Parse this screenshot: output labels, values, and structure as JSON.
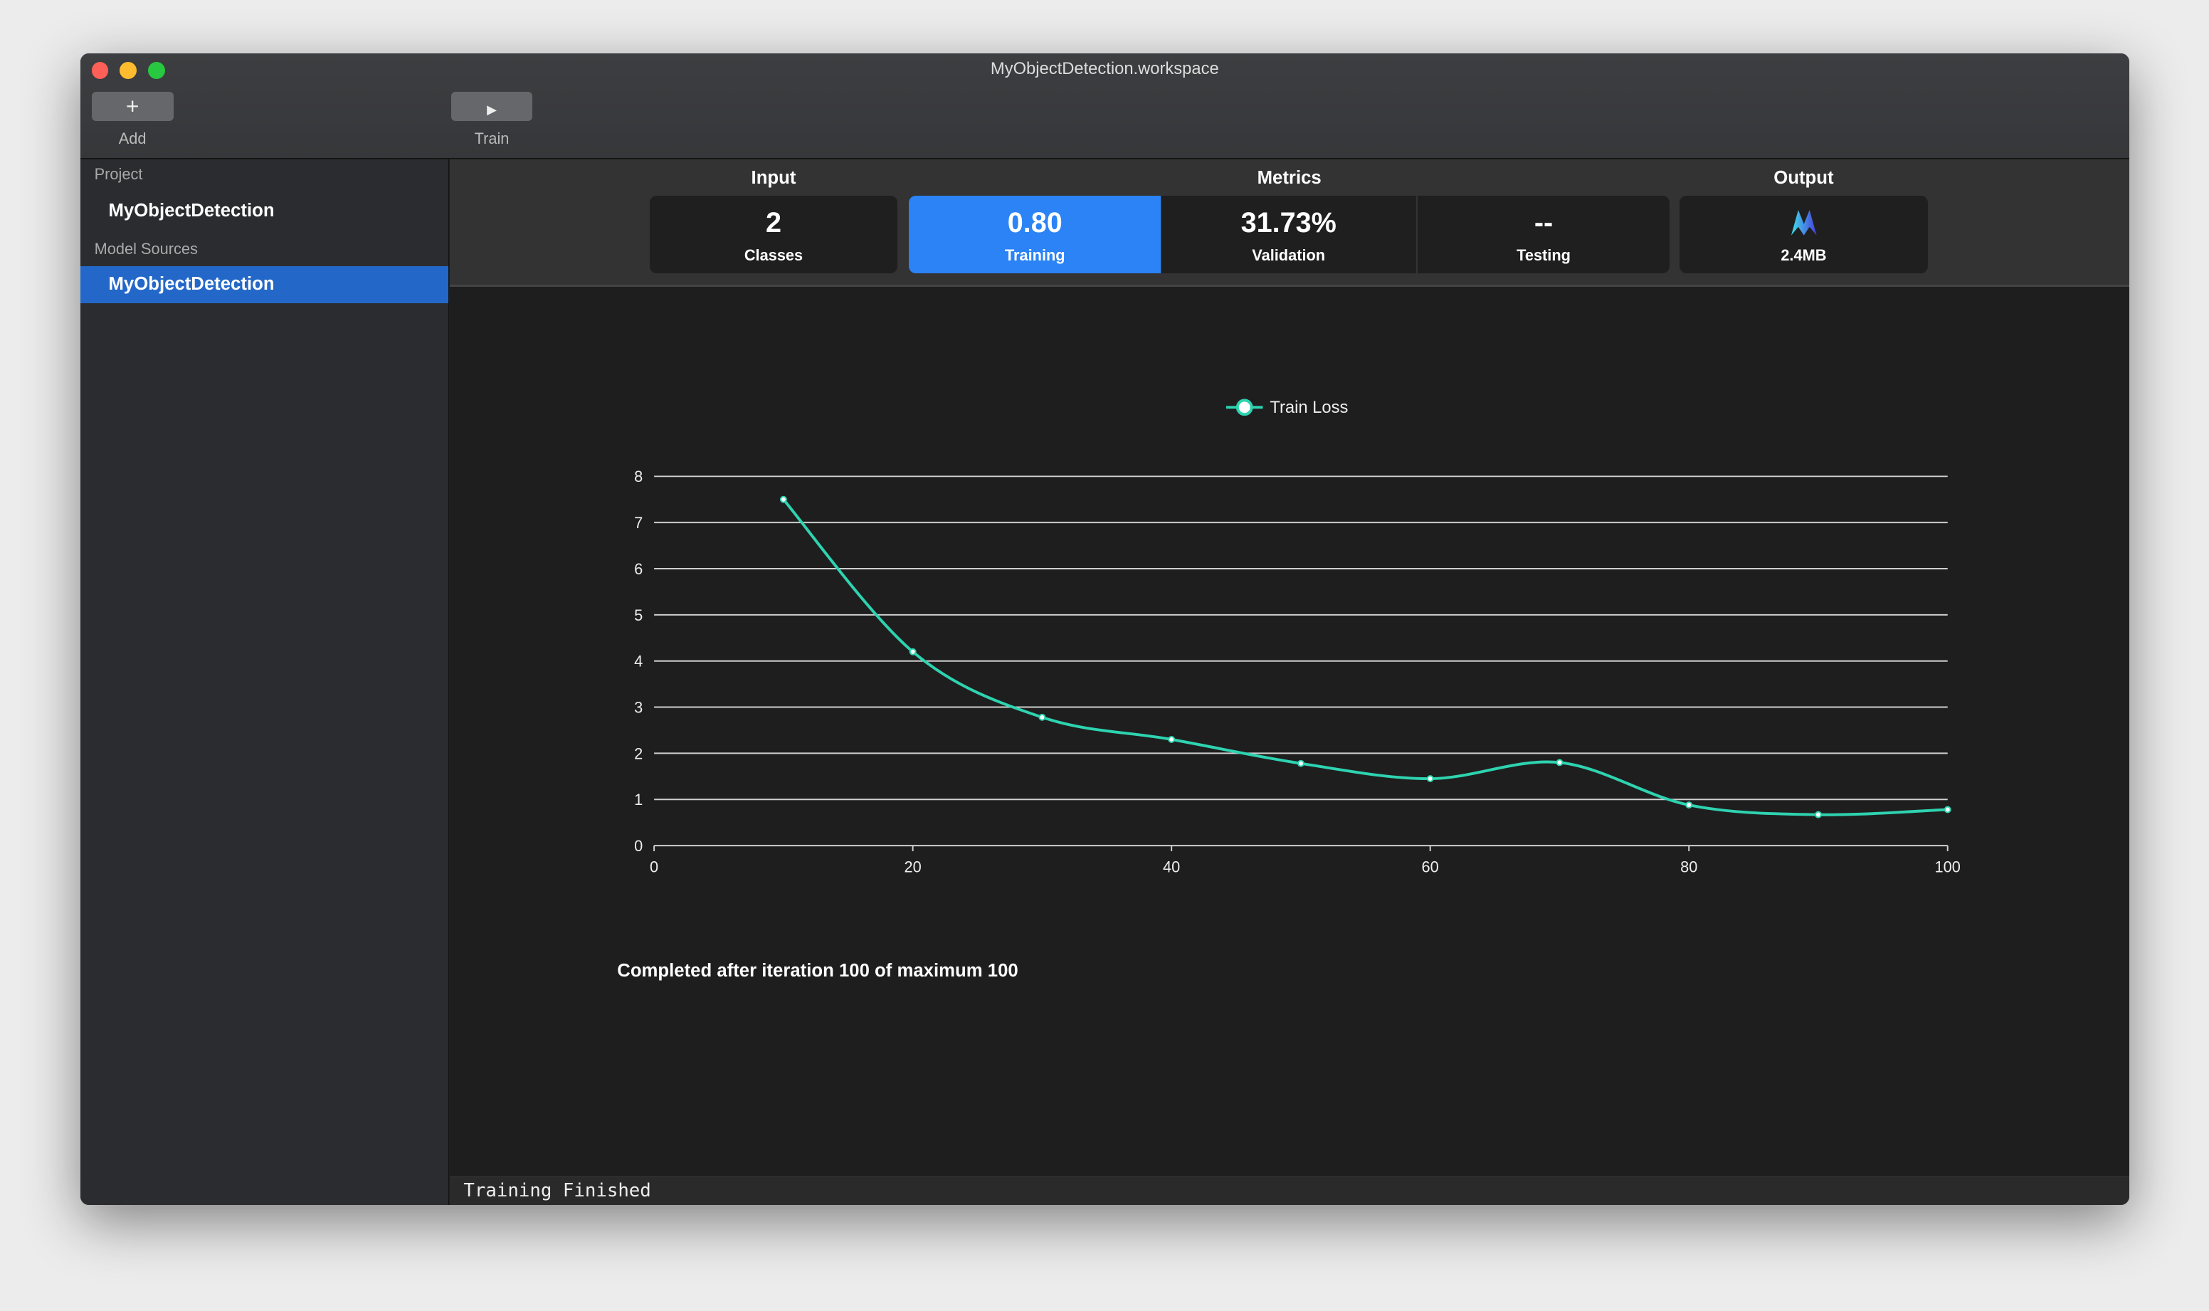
{
  "window": {
    "title": "MyObjectDetection.workspace"
  },
  "toolbar": {
    "add_label": "Add",
    "train_label": "Train"
  },
  "sidebar": {
    "project_header": "Project",
    "project_item": "MyObjectDetection",
    "sources_header": "Model Sources",
    "sources_item": "MyObjectDetection"
  },
  "header": {
    "input": {
      "title": "Input",
      "value": "2",
      "label": "Classes"
    },
    "metrics": {
      "title": "Metrics",
      "training": {
        "value": "0.80",
        "label": "Training"
      },
      "validation": {
        "value": "31.73%",
        "label": "Validation"
      },
      "testing": {
        "value": "--",
        "label": "Testing"
      }
    },
    "output": {
      "title": "Output",
      "icon": "createml-model-icon",
      "label": "2.4MB"
    }
  },
  "colors": {
    "accent": "#2b83f6",
    "line": "#2ed3b0",
    "selection": "#2368c8"
  },
  "chart_data": {
    "type": "line",
    "legend": "Train Loss",
    "legend_position": "top-center",
    "grid": true,
    "x": [
      10,
      20,
      30,
      40,
      50,
      60,
      70,
      80,
      90,
      100
    ],
    "values": [
      7.5,
      4.2,
      2.78,
      2.3,
      1.78,
      1.45,
      1.8,
      0.88,
      0.67,
      0.78
    ],
    "xlim": [
      0,
      100
    ],
    "ylim": [
      0,
      8
    ],
    "xticks": [
      "0",
      "20",
      "40",
      "60",
      "80",
      "100"
    ],
    "yticks": [
      "0",
      "1",
      "2",
      "3",
      "4",
      "5",
      "6",
      "7",
      "8"
    ]
  },
  "summary": "Completed after iteration 100 of maximum 100",
  "status": "Training Finished"
}
